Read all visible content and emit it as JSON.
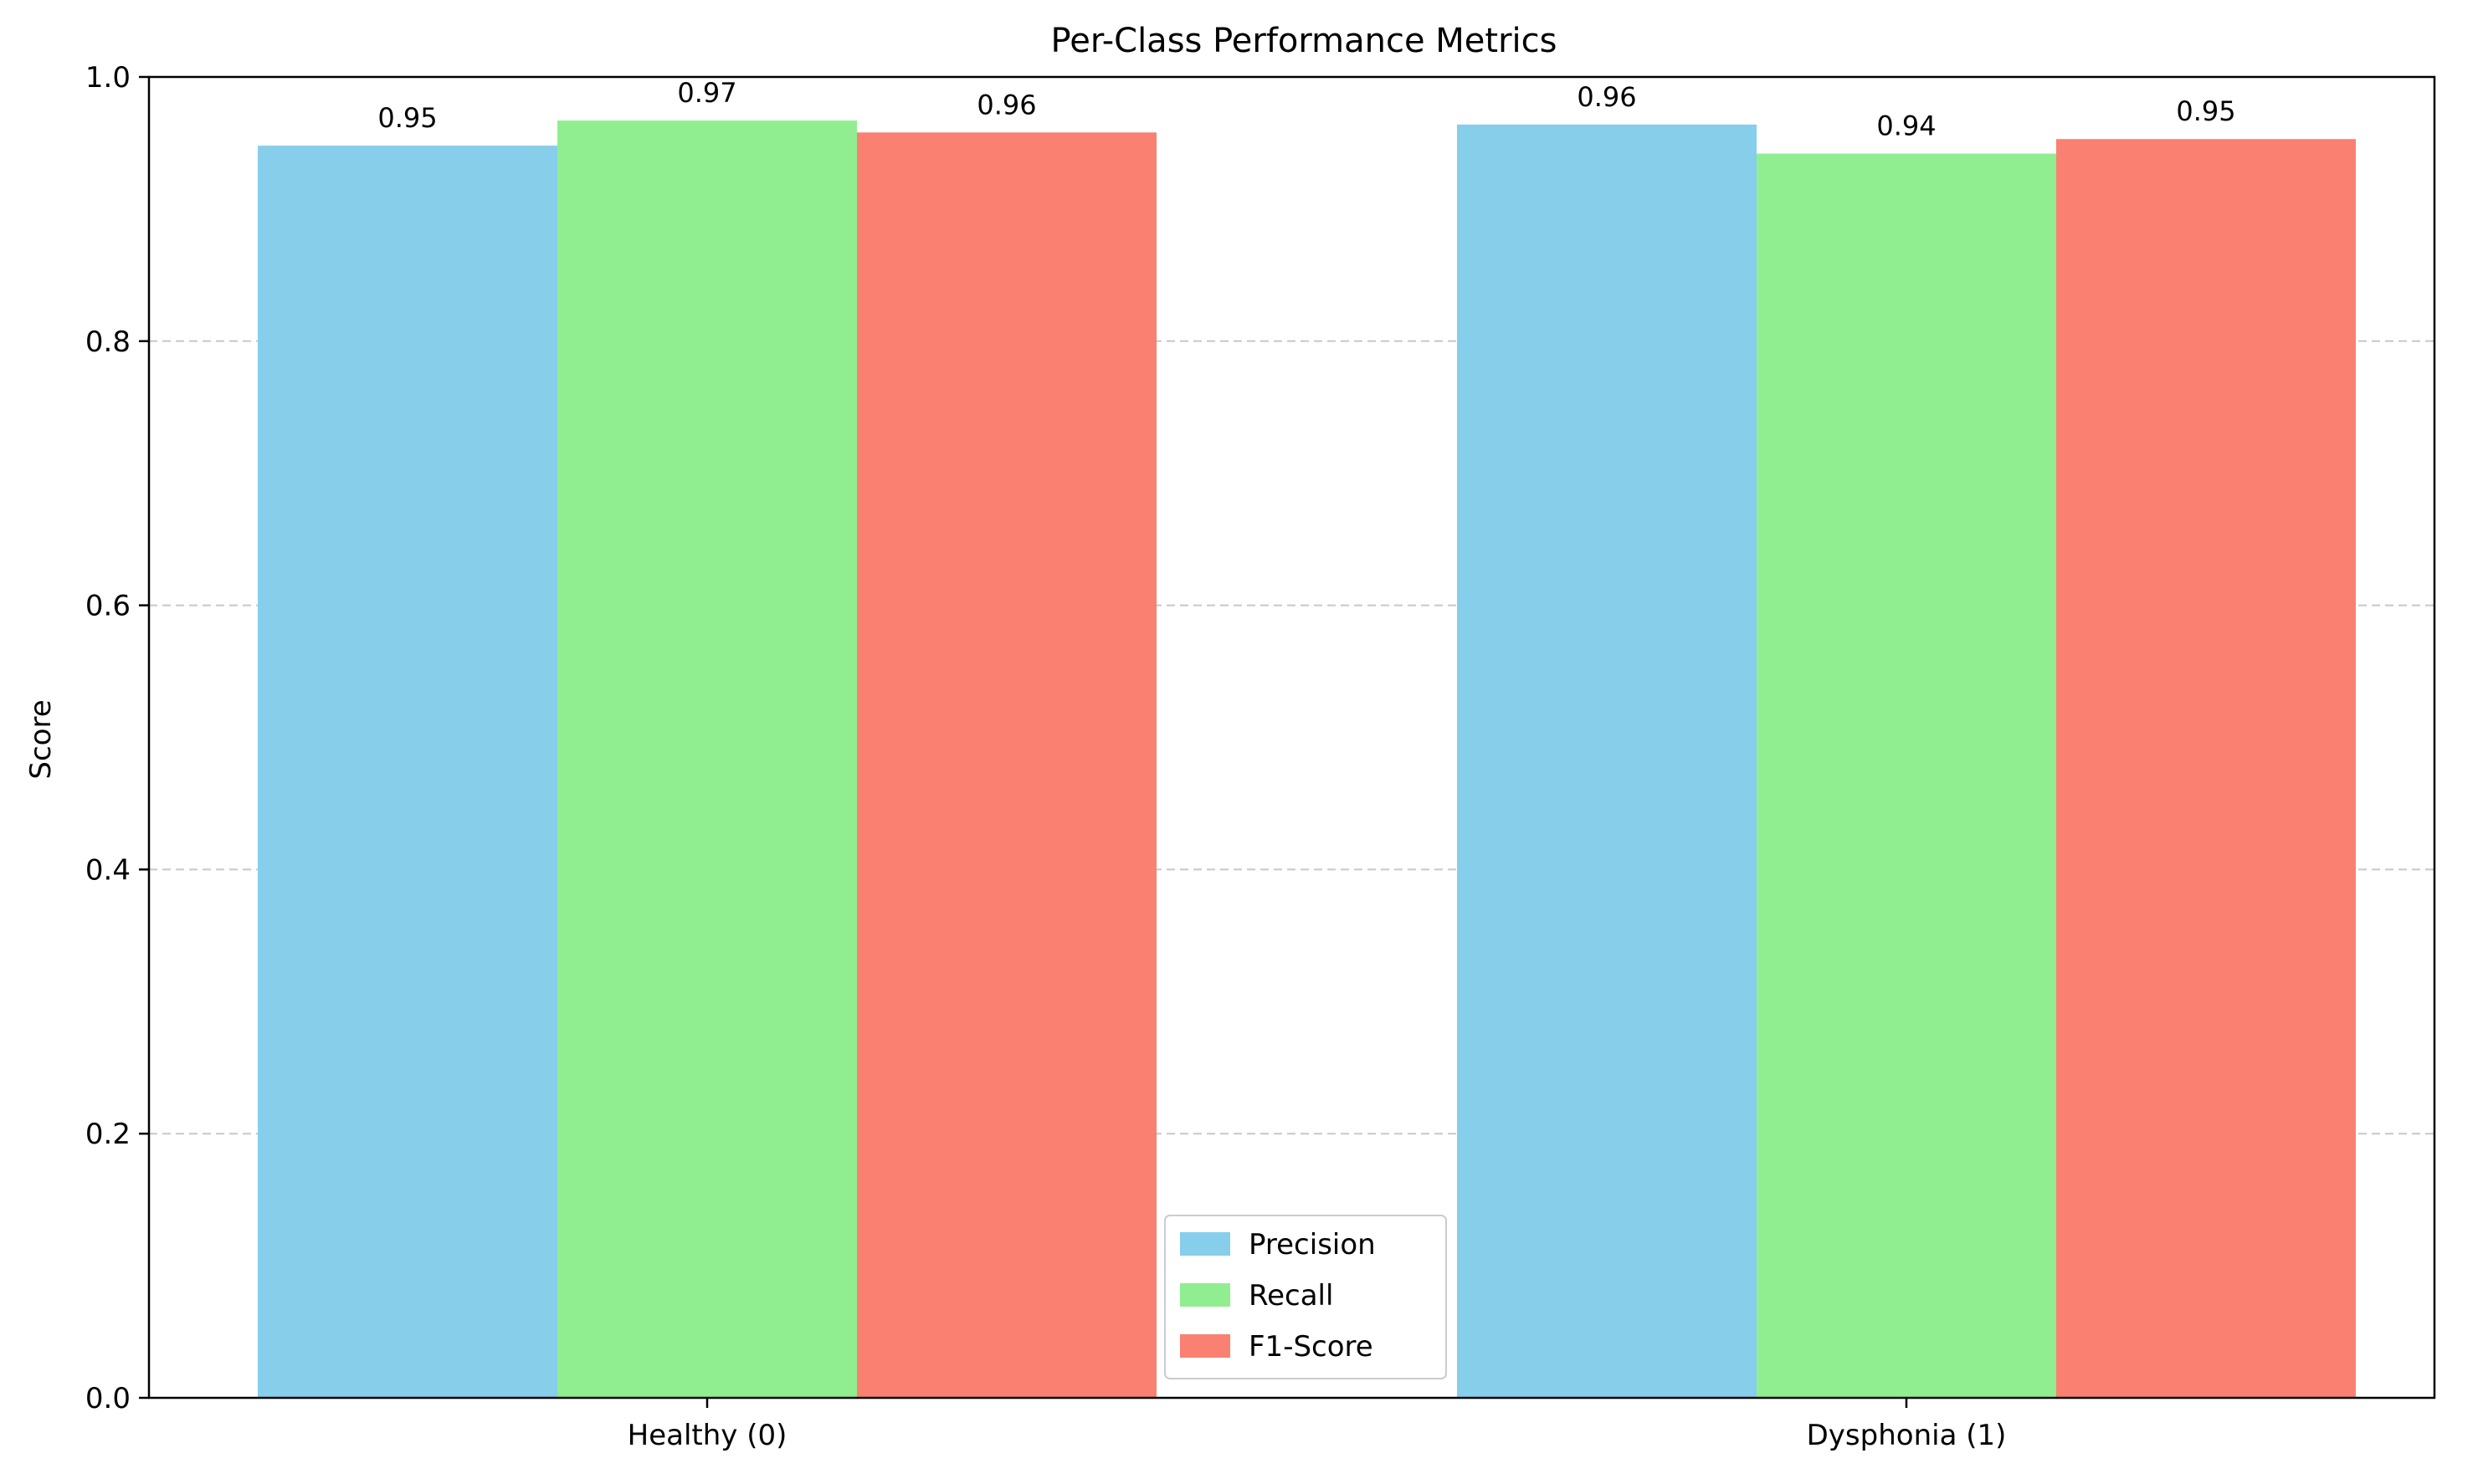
{
  "chart_data": {
    "type": "bar",
    "title": "Per-Class Performance Metrics",
    "xlabel": "",
    "ylabel": "Score",
    "ylim": [
      0,
      1.0
    ],
    "yticks": [
      0.0,
      0.2,
      0.4,
      0.6,
      0.8,
      1.0
    ],
    "ytick_labels": [
      "0.0",
      "0.2",
      "0.4",
      "0.6",
      "0.8",
      "1.0"
    ],
    "categories": [
      "Healthy (0)",
      "Dysphonia (1)"
    ],
    "series": [
      {
        "name": "Precision",
        "color": "#87CEEB",
        "values": [
          0.948,
          0.964
        ],
        "labels": [
          "0.95",
          "0.96"
        ]
      },
      {
        "name": "Recall",
        "color": "#90EE90",
        "values": [
          0.967,
          0.942
        ],
        "labels": [
          "0.97",
          "0.94"
        ]
      },
      {
        "name": "F1-Score",
        "color": "#FA8072",
        "values": [
          0.958,
          0.953
        ],
        "labels": [
          "0.96",
          "0.95"
        ]
      }
    ],
    "grid": {
      "axis": "y",
      "style": "dashed",
      "color": "#c8c8c8"
    },
    "legend": {
      "placement": "lower center"
    }
  }
}
